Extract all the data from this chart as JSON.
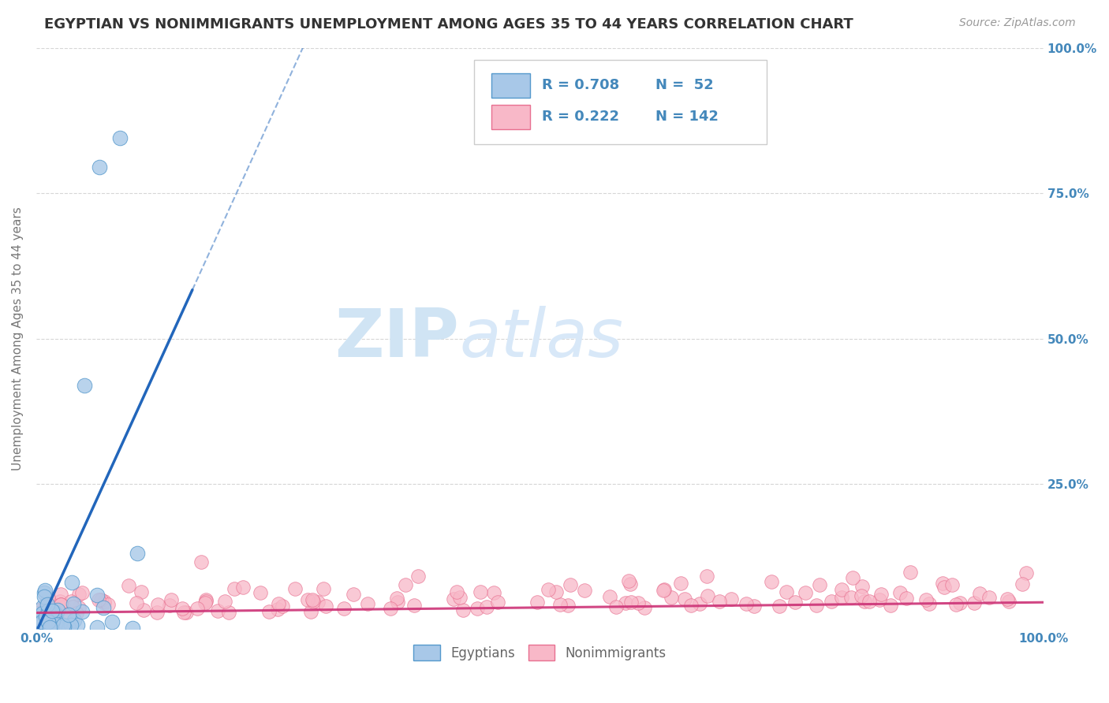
{
  "title": "EGYPTIAN VS NONIMMIGRANTS UNEMPLOYMENT AMONG AGES 35 TO 44 YEARS CORRELATION CHART",
  "source": "Source: ZipAtlas.com",
  "ylabel": "Unemployment Among Ages 35 to 44 years",
  "xlim": [
    0,
    1.0
  ],
  "ylim": [
    0,
    1.0
  ],
  "xticks": [
    0.0,
    0.25,
    0.5,
    0.75,
    1.0
  ],
  "xticklabels": [
    "0.0%",
    "",
    "",
    "",
    "100.0%"
  ],
  "yticks": [
    0.0,
    0.25,
    0.5,
    0.75,
    1.0
  ],
  "right_yticklabels": [
    "",
    "25.0%",
    "50.0%",
    "75.0%",
    "100.0%"
  ],
  "egyptian_color": "#a8c8e8",
  "egyptian_edge_color": "#5599cc",
  "nonimm_color": "#f8b8c8",
  "nonimm_edge_color": "#e87090",
  "trendline_egyptian_color": "#2266bb",
  "trendline_nonimm_color": "#cc3377",
  "R_egyptian": 0.708,
  "N_egyptian": 52,
  "R_nonimm": 0.222,
  "N_nonimm": 142,
  "legend_label_egyptian": "Egyptians",
  "legend_label_nonimm": "Nonimmigrants",
  "background_color": "#ffffff",
  "grid_color": "#cccccc",
  "title_color": "#333333",
  "axis_label_color": "#777777",
  "tick_label_color": "#4488bb",
  "watermark_color": "#d0e4f4",
  "source_color": "#999999"
}
